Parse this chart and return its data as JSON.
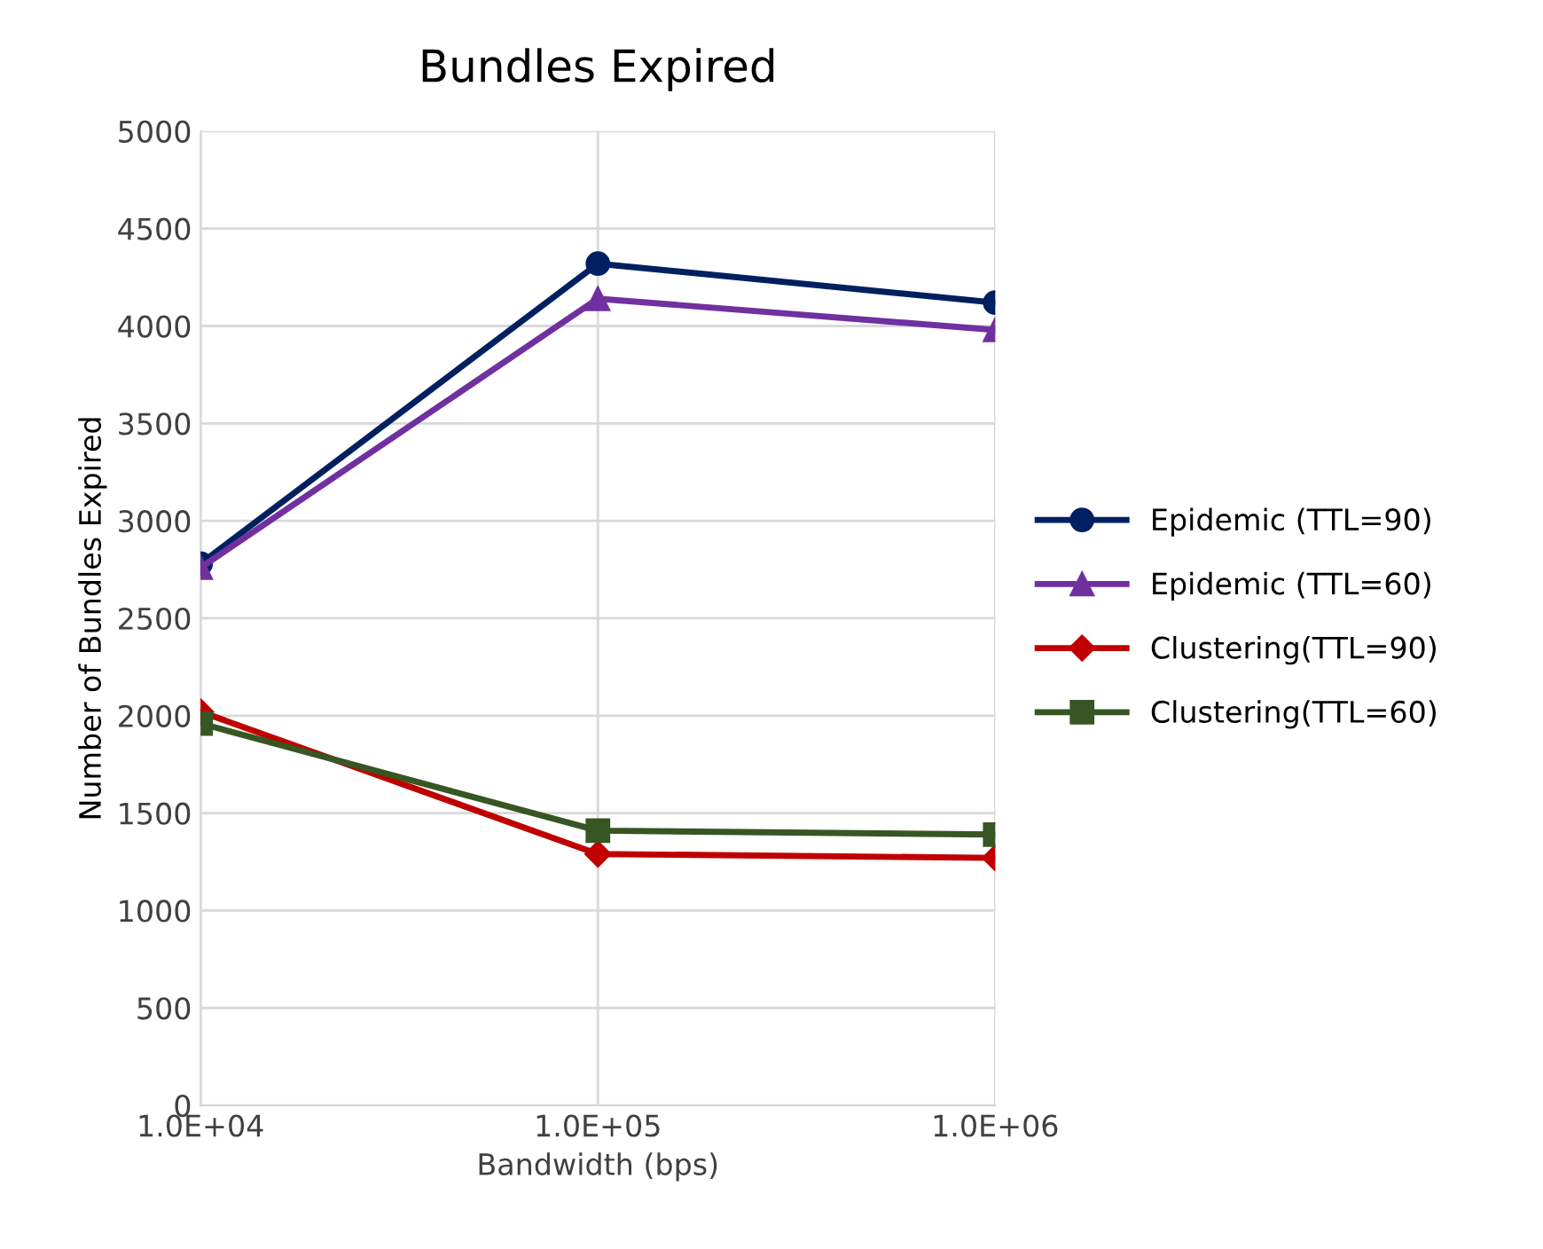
{
  "chart_data": {
    "type": "line",
    "title": "Bundles Expired",
    "xlabel": "Bandwidth (bps)",
    "ylabel": "Number of Bundles Expired",
    "x": [
      10000,
      100000,
      1000000
    ],
    "log": "x",
    "xlim": [
      10000,
      1000000
    ],
    "xticks": [
      {
        "value": 10000,
        "label": "1.0E+04"
      },
      {
        "value": 100000,
        "label": "1.0E+05"
      },
      {
        "value": 1000000,
        "label": "1.0E+06"
      }
    ],
    "ylim": [
      0,
      5000
    ],
    "yticks": [
      0,
      500,
      1000,
      1500,
      2000,
      2500,
      3000,
      3500,
      4000,
      4500,
      5000
    ],
    "grid": true,
    "legend": "right",
    "line_style": "solid",
    "series": [
      {
        "name": "Epidemic (TTL=90)",
        "color": "#002060",
        "marker": "circle",
        "values": [
          2780,
          4320,
          4120
        ]
      },
      {
        "name": "Epidemic (TTL=60)",
        "color": "#7030a0",
        "marker": "triangle",
        "values": [
          2760,
          4140,
          3980
        ]
      },
      {
        "name": "Clustering(TTL=90)",
        "color": "#c00000",
        "marker": "diamond",
        "values": [
          2020,
          1290,
          1270
        ]
      },
      {
        "name": "Clustering(TTL=60)",
        "color": "#375623",
        "marker": "square",
        "values": [
          1960,
          1410,
          1390
        ]
      }
    ]
  }
}
